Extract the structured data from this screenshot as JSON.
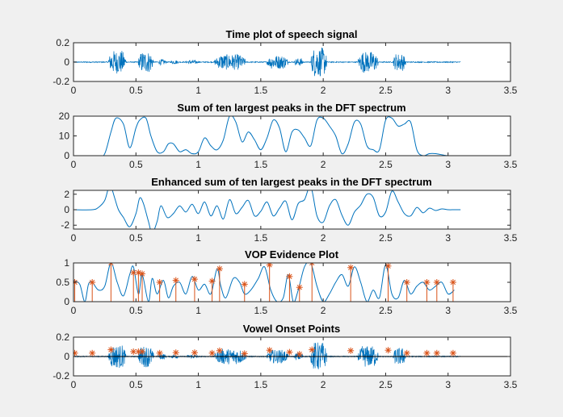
{
  "colors": {
    "figure_bg": "#f0f0f0",
    "axes_bg": "#ffffff",
    "signal": "#0072bd",
    "stem": "#d95319",
    "axis": "#262626",
    "baseline": "#000000"
  },
  "chart_data": [
    {
      "type": "line",
      "title": "Time plot of speech signal",
      "xlim": [
        0,
        3.5
      ],
      "ylim": [
        -0.2,
        0.2
      ],
      "xticks": [
        "0",
        "0.5",
        "1",
        "1.5",
        "2",
        "2.5",
        "3",
        "3.5"
      ],
      "xtick_values": [
        0,
        0.5,
        1,
        1.5,
        2,
        2.5,
        3,
        3.5
      ],
      "yticks": [
        "0.2",
        "0",
        "-0.2"
      ],
      "ytick_values": [
        0.2,
        0,
        -0.2
      ],
      "grid": false,
      "series": [
        {
          "kind": "waveform",
          "x_end": 3.1,
          "noise": 0.005,
          "segments": [
            [
              0.28,
              0.42,
              0.12
            ],
            [
              0.52,
              0.64,
              0.11
            ],
            [
              0.68,
              0.74,
              0.03
            ],
            [
              0.78,
              0.84,
              0.02
            ],
            [
              0.9,
              1.0,
              0.02
            ],
            [
              1.13,
              1.38,
              0.08
            ],
            [
              1.55,
              1.72,
              0.07
            ],
            [
              1.77,
              1.84,
              0.04
            ],
            [
              1.9,
              2.03,
              0.15
            ],
            [
              2.28,
              2.44,
              0.11
            ],
            [
              2.56,
              2.66,
              0.09
            ]
          ]
        }
      ]
    },
    {
      "type": "line",
      "title": "Sum of ten largest peaks in the DFT spectrum",
      "xlim": [
        0,
        3.5
      ],
      "ylim": [
        0,
        20
      ],
      "xticks": [
        "0",
        "0.5",
        "1",
        "1.5",
        "2",
        "2.5",
        "3",
        "3.5"
      ],
      "xtick_values": [
        0,
        0.5,
        1,
        1.5,
        2,
        2.5,
        3,
        3.5
      ],
      "yticks": [
        "20",
        "10",
        "0"
      ],
      "ytick_values": [
        20,
        10,
        0
      ],
      "grid": false,
      "series": [
        {
          "x": [
            0,
            0.2,
            0.25,
            0.3,
            0.34,
            0.4,
            0.45,
            0.5,
            0.53,
            0.58,
            0.62,
            0.67,
            0.72,
            0.76,
            0.8,
            0.85,
            0.9,
            0.95,
            1.0,
            1.05,
            1.1,
            1.15,
            1.2,
            1.25,
            1.3,
            1.35,
            1.4,
            1.45,
            1.5,
            1.55,
            1.6,
            1.65,
            1.7,
            1.75,
            1.8,
            1.85,
            1.9,
            1.95,
            2.0,
            2.05,
            2.1,
            2.15,
            2.2,
            2.25,
            2.3,
            2.35,
            2.4,
            2.45,
            2.5,
            2.55,
            2.6,
            2.65,
            2.7,
            2.75,
            2.8,
            2.85,
            2.9,
            3.0,
            3.1
          ],
          "y": [
            0,
            0,
            1,
            12,
            19,
            16,
            4,
            14,
            18,
            19,
            10,
            2,
            2,
            6,
            6,
            2,
            3,
            1,
            2,
            9,
            5,
            3,
            8,
            20,
            17,
            7,
            12,
            8,
            3,
            9,
            18,
            14,
            2,
            12,
            13,
            9,
            5,
            18,
            19,
            15,
            10,
            1,
            6,
            17,
            16,
            5,
            3,
            3,
            18,
            19,
            15,
            16,
            17,
            3,
            0,
            1,
            1,
            0,
            0
          ]
        }
      ]
    },
    {
      "type": "line",
      "title": "Enhanced sum of ten largest peaks in the DFT spectrum",
      "xlim": [
        0,
        3.5
      ],
      "ylim": [
        -2.5,
        2.5
      ],
      "xticks": [
        "0",
        "0.5",
        "1",
        "1.5",
        "2",
        "2.5",
        "3",
        "3.5"
      ],
      "xtick_values": [
        0,
        0.5,
        1,
        1.5,
        2,
        2.5,
        3,
        3.5
      ],
      "yticks": [
        "2",
        "0",
        "-2"
      ],
      "ytick_values": [
        2,
        0,
        -2
      ],
      "grid": false,
      "series": [
        {
          "x": [
            0,
            0.15,
            0.2,
            0.25,
            0.28,
            0.3,
            0.33,
            0.36,
            0.4,
            0.45,
            0.5,
            0.53,
            0.56,
            0.6,
            0.63,
            0.67,
            0.7,
            0.75,
            0.8,
            0.85,
            0.9,
            0.95,
            1.0,
            1.05,
            1.1,
            1.15,
            1.2,
            1.25,
            1.3,
            1.35,
            1.4,
            1.45,
            1.5,
            1.55,
            1.6,
            1.65,
            1.7,
            1.75,
            1.8,
            1.85,
            1.9,
            1.95,
            2.0,
            2.05,
            2.1,
            2.15,
            2.2,
            2.25,
            2.3,
            2.35,
            2.4,
            2.45,
            2.5,
            2.55,
            2.6,
            2.65,
            2.7,
            2.75,
            2.8,
            2.85,
            2.9,
            2.95,
            3.0,
            3.05,
            3.1
          ],
          "y": [
            0,
            0,
            0.3,
            1.2,
            2.8,
            3,
            1.5,
            0,
            -1,
            -2.2,
            -0.5,
            1.5,
            0.8,
            -1.5,
            -3,
            -1.5,
            0.5,
            -1,
            -0.5,
            0.5,
            -0.3,
            0.7,
            -0.5,
            1,
            -0.8,
            0.5,
            -1.2,
            1.3,
            -0.5,
            0.3,
            1.2,
            -0.8,
            -0.2,
            1,
            -0.8,
            0.2,
            1.1,
            -1.3,
            0.8,
            1.3,
            3,
            -0.8,
            -1.6,
            0.5,
            1.3,
            -0.7,
            -2,
            -0.3,
            0.6,
            2,
            1.6,
            -0.8,
            -0.3,
            2.4,
            1,
            -0.5,
            -0.8,
            0.3,
            -0.4,
            0.2,
            -0.1,
            0.1,
            0,
            0,
            0
          ]
        }
      ]
    },
    {
      "type": "stem",
      "title": "VOP Evidence Plot",
      "xlim": [
        0,
        3.5
      ],
      "ylim": [
        0,
        1
      ],
      "xticks": [
        "0",
        "0.5",
        "1",
        "1.5",
        "2",
        "2.5",
        "3",
        "3.5"
      ],
      "xtick_values": [
        0,
        0.5,
        1,
        1.5,
        2,
        2.5,
        3,
        3.5
      ],
      "yticks": [
        "1",
        "0.5",
        "0"
      ],
      "ytick_values": [
        1,
        0.5,
        0
      ],
      "grid": false,
      "series": [
        {
          "kind": "evidence-line",
          "x": [
            0,
            0.05,
            0.09,
            0.12,
            0.15,
            0.2,
            0.25,
            0.3,
            0.35,
            0.4,
            0.45,
            0.48,
            0.52,
            0.55,
            0.6,
            0.63,
            0.67,
            0.72,
            0.76,
            0.8,
            0.85,
            0.9,
            0.95,
            1.0,
            1.05,
            1.1,
            1.15,
            1.18,
            1.22,
            1.28,
            1.33,
            1.37,
            1.42,
            1.48,
            1.53,
            1.58,
            1.63,
            1.68,
            1.72,
            1.76,
            1.8,
            1.85,
            1.9,
            1.95,
            2.0,
            2.05,
            2.1,
            2.15,
            2.2,
            2.25,
            2.3,
            2.35,
            2.4,
            2.45,
            2.5,
            2.55,
            2.6,
            2.65,
            2.7,
            2.75,
            2.8,
            2.85,
            2.9,
            2.95,
            3.0,
            3.05
          ],
          "y": [
            0.55,
            0.45,
            0,
            0.45,
            0.5,
            0.3,
            0.4,
            1,
            0.5,
            0.15,
            0.7,
            0.9,
            0.2,
            0.7,
            0,
            0.6,
            0.2,
            0.55,
            0.1,
            0.4,
            0.5,
            0.2,
            0.65,
            0.3,
            0.45,
            0.2,
            0.85,
            0.4,
            0.1,
            0.6,
            0.5,
            0.2,
            0.3,
            0.6,
            0.9,
            0.3,
            0,
            0.1,
            0.7,
            0,
            0.3,
            0.9,
            1,
            0.4,
            0,
            0.2,
            0.5,
            0.7,
            0.4,
            0.9,
            0.5,
            0,
            0.3,
            0.1,
            0.95,
            0.2,
            0.1,
            0.55,
            0.2,
            0.4,
            0.5,
            0.3,
            0.4,
            0.5,
            0.2,
            0.3
          ]
        },
        {
          "kind": "stems",
          "x": [
            0.01,
            0.15,
            0.3,
            0.48,
            0.52,
            0.55,
            0.69,
            0.82,
            0.97,
            1.11,
            1.17,
            1.37,
            1.57,
            1.73,
            1.81,
            1.91,
            2.22,
            2.52,
            2.67,
            2.83,
            2.91,
            3.04
          ],
          "y": [
            0.5,
            0.5,
            1,
            0.75,
            0.75,
            0.72,
            0.5,
            0.55,
            0.58,
            0.53,
            0.85,
            0.45,
            0.95,
            0.65,
            0.37,
            1,
            0.88,
            0.92,
            0.5,
            0.5,
            0.5,
            0.5
          ]
        }
      ]
    },
    {
      "type": "line",
      "title": "Vowel Onset Points",
      "xlim": [
        0,
        3.5
      ],
      "ylim": [
        -0.2,
        0.2
      ],
      "xticks": [
        "0",
        "0.5",
        "1",
        "1.5",
        "2",
        "2.5",
        "3",
        "3.5"
      ],
      "xtick_values": [
        0,
        0.5,
        1,
        1.5,
        2,
        2.5,
        3,
        3.5
      ],
      "yticks": [
        "0.2",
        "0",
        "-0.2"
      ],
      "ytick_values": [
        0.2,
        0,
        -0.2
      ],
      "grid": false,
      "series": [
        {
          "kind": "waveform",
          "x_end": 3.1,
          "noise": 0.005,
          "segments": [
            [
              0.28,
              0.42,
              0.12
            ],
            [
              0.52,
              0.64,
              0.11
            ],
            [
              0.68,
              0.74,
              0.03
            ],
            [
              0.78,
              0.84,
              0.02
            ],
            [
              0.9,
              1.0,
              0.02
            ],
            [
              1.13,
              1.38,
              0.08
            ],
            [
              1.55,
              1.72,
              0.07
            ],
            [
              1.77,
              1.84,
              0.04
            ],
            [
              1.9,
              2.03,
              0.15
            ],
            [
              2.28,
              2.44,
              0.11
            ],
            [
              2.56,
              2.66,
              0.09
            ]
          ]
        },
        {
          "kind": "markers",
          "x": [
            0.01,
            0.15,
            0.3,
            0.48,
            0.52,
            0.55,
            0.69,
            0.82,
            0.97,
            1.11,
            1.17,
            1.37,
            1.57,
            1.73,
            1.81,
            1.91,
            2.22,
            2.52,
            2.67,
            2.83,
            2.91,
            3.04
          ],
          "y": [
            0.035,
            0.035,
            0.07,
            0.05,
            0.05,
            0.05,
            0.035,
            0.04,
            0.04,
            0.035,
            0.06,
            0.03,
            0.065,
            0.045,
            0.025,
            0.07,
            0.06,
            0.065,
            0.035,
            0.035,
            0.035,
            0.035
          ]
        }
      ]
    }
  ]
}
